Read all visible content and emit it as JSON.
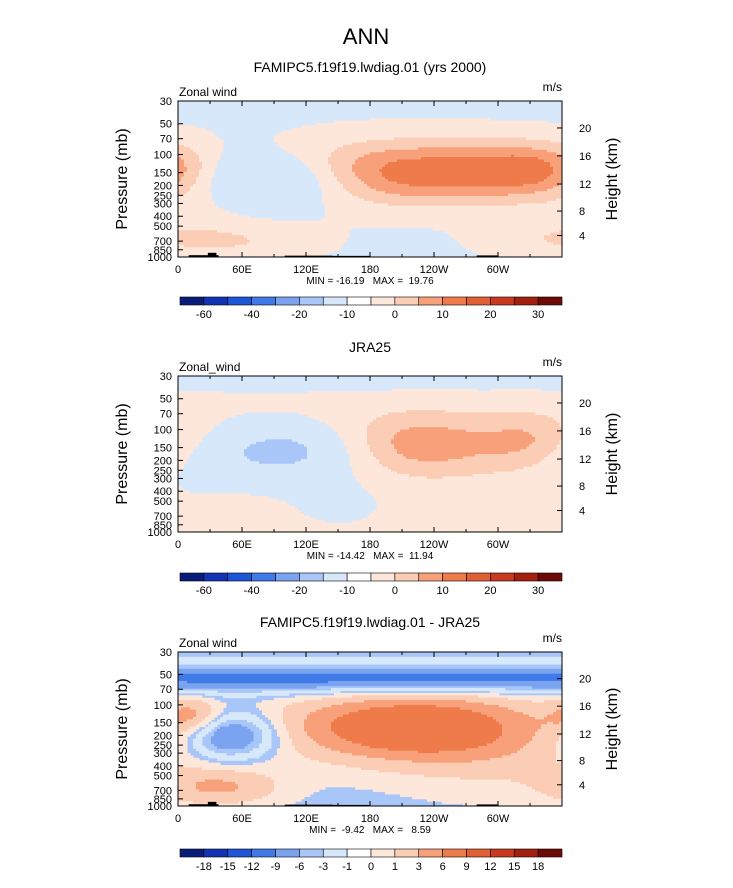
{
  "title": "ANN",
  "colors": {
    "neg4": "#1d56d8",
    "neg3": "#3f7ae8",
    "neg2": "#7aa3f0",
    "neg1": "#a9c6f8",
    "neg0": "#d7e8fb",
    "pos0": "#fde6da",
    "pos1": "#fbcdb4",
    "pos2": "#f7a07a",
    "pos3": "#ef7a4a",
    "pos4": "#e15f35",
    "terrain": "#000000"
  },
  "chart_data": [
    {
      "type": "heatmap",
      "title": "FAMIPC5.f19f19.lwdiag.01 (yrs 2000)",
      "variable": "Zonal wind",
      "units": "m/s",
      "ylabel": "Pressure (mb)",
      "ylabel_right": "Height (km)",
      "x_ticks": [
        "0",
        "60E",
        "120E",
        "180",
        "120W",
        "60W"
      ],
      "x_tick_values": [
        0,
        60,
        120,
        180,
        240,
        300
      ],
      "xlim": [
        0,
        360
      ],
      "y_ticks": [
        "30",
        "50",
        "70",
        "100",
        "150",
        "200",
        "250",
        "300",
        "400",
        "500",
        "700",
        "850",
        "1000"
      ],
      "y_tick_values": [
        30,
        50,
        70,
        100,
        150,
        200,
        250,
        300,
        400,
        500,
        700,
        850,
        1000
      ],
      "y_right_ticks": [
        "20",
        "16",
        "12",
        "8",
        "4"
      ],
      "y_right_tick_pressures": [
        55,
        103,
        194,
        356,
        617
      ],
      "ylim": [
        1000,
        30
      ],
      "background_level": "neg0",
      "features": [
        {
          "lon": 220,
          "p": 150,
          "sx": 95,
          "sy": 0.5,
          "amp": 20
        },
        {
          "lon": 338,
          "p": 140,
          "sx": 40,
          "sy": 0.42,
          "amp": 11
        },
        {
          "lon": 95,
          "p": 170,
          "sx": 55,
          "sy": 0.42,
          "amp": -14
        },
        {
          "lon": 50,
          "p": 700,
          "sx": 55,
          "sy": 0.3,
          "amp": 6
        },
        {
          "lon": 330,
          "p": 650,
          "sx": 40,
          "sy": 0.3,
          "amp": 3
        },
        {
          "lon": 20,
          "p": 350,
          "sx": 30,
          "sy": 0.4,
          "amp": 2
        }
      ],
      "levels": [
        {
          "threshold": -15,
          "color": "neg2"
        },
        {
          "threshold": -8,
          "color": "neg1"
        },
        {
          "threshold": -1.5,
          "color": "neg0"
        },
        {
          "threshold": 1,
          "color": "pos0"
        },
        {
          "threshold": 6,
          "color": "pos1"
        },
        {
          "threshold": 11,
          "color": "pos2"
        },
        {
          "threshold": 16,
          "color": "pos3"
        }
      ],
      "terrain": [
        {
          "lon_start": 10,
          "lon_end": 38,
          "p_top": 960
        },
        {
          "lon_start": 28,
          "lon_end": 36,
          "p_top": 910
        },
        {
          "lon_start": 100,
          "lon_end": 145,
          "p_top": 970
        },
        {
          "lon_start": 145,
          "lon_end": 180,
          "p_top": 975
        },
        {
          "lon_start": 280,
          "lon_end": 300,
          "p_top": 965
        }
      ],
      "stats": "MIN = -16.19   MAX =  19.76",
      "colorbar": {
        "colors": [
          "#0a1c7a",
          "#1233b4",
          "#1d56d8",
          "#3f7ae8",
          "#7aa3f0",
          "#a9c6f8",
          "#d7e8fb",
          "#ffffff",
          "#fde6da",
          "#fbcdb4",
          "#f7a07a",
          "#ef7a4a",
          "#e15f35",
          "#c9391f",
          "#a3200f",
          "#6e0a05"
        ],
        "labels": [
          "-60",
          "-40",
          "-20",
          "-10",
          "0",
          "10",
          "20",
          "30"
        ],
        "label_boundaries": [
          1,
          3,
          5,
          7,
          9,
          11,
          13,
          15
        ]
      }
    },
    {
      "type": "heatmap",
      "title": "JRA25",
      "variable": "Zonal_wind",
      "units": "m/s",
      "ylabel": "Pressure (mb)",
      "ylabel_right": "Height (km)",
      "x_ticks": [
        "0",
        "60E",
        "120E",
        "180",
        "120W",
        "60W"
      ],
      "x_tick_values": [
        0,
        60,
        120,
        180,
        240,
        300
      ],
      "xlim": [
        0,
        360
      ],
      "y_ticks": [
        "30",
        "50",
        "70",
        "100",
        "150",
        "200",
        "250",
        "300",
        "400",
        "500",
        "700",
        "850",
        "1000"
      ],
      "y_tick_values": [
        30,
        50,
        70,
        100,
        150,
        200,
        250,
        300,
        400,
        500,
        700,
        850,
        1000
      ],
      "y_right_ticks": [
        "20",
        "16",
        "12",
        "8",
        "4"
      ],
      "y_right_tick_pressures": [
        55,
        103,
        194,
        356,
        617
      ],
      "ylim": [
        1000,
        30
      ],
      "background_level": "pos0",
      "features": [
        {
          "lon": 225,
          "p": 140,
          "sx": 60,
          "sy": 0.55,
          "amp": 12
        },
        {
          "lon": 335,
          "p": 130,
          "sx": 35,
          "sy": 0.5,
          "amp": 8
        },
        {
          "lon": 105,
          "p": 160,
          "sx": 50,
          "sy": 0.45,
          "amp": -13
        },
        {
          "lon": 20,
          "p": 220,
          "sx": 35,
          "sy": 0.5,
          "amp": -4
        },
        {
          "lon": 150,
          "p": 450,
          "sx": 40,
          "sy": 0.5,
          "amp": -3
        },
        {
          "lon": 180,
          "p": 30,
          "sx": 400,
          "sy": 0.22,
          "amp": -6
        },
        {
          "lon": 50,
          "p": 700,
          "sx": 30,
          "sy": 0.25,
          "amp": 3
        }
      ],
      "levels": [
        {
          "threshold": -10,
          "color": "neg1"
        },
        {
          "threshold": -1.5,
          "color": "neg0"
        },
        {
          "threshold": 1,
          "color": "pos0"
        },
        {
          "threshold": 4.5,
          "color": "pos1"
        },
        {
          "threshold": 9,
          "color": "pos2"
        }
      ],
      "terrain": [],
      "stats": "MIN = -14.42   MAX =  11.94",
      "colorbar": {
        "colors": [
          "#0a1c7a",
          "#1233b4",
          "#1d56d8",
          "#3f7ae8",
          "#7aa3f0",
          "#a9c6f8",
          "#d7e8fb",
          "#ffffff",
          "#fde6da",
          "#fbcdb4",
          "#f7a07a",
          "#ef7a4a",
          "#e15f35",
          "#c9391f",
          "#a3200f",
          "#6e0a05"
        ],
        "labels": [
          "-60",
          "-40",
          "-20",
          "-10",
          "0",
          "10",
          "20",
          "30"
        ],
        "label_boundaries": [
          1,
          3,
          5,
          7,
          9,
          11,
          13,
          15
        ]
      }
    },
    {
      "type": "heatmap",
      "title": "FAMIPC5.f19f19.lwdiag.01 - JRA25",
      "variable": "Zonal wind",
      "units": "m/s",
      "ylabel": "Pressure (mb)",
      "ylabel_right": "Height (km)",
      "x_ticks": [
        "0",
        "60E",
        "120E",
        "180",
        "120W",
        "60W"
      ],
      "x_tick_values": [
        0,
        60,
        120,
        180,
        240,
        300
      ],
      "xlim": [
        0,
        360
      ],
      "y_ticks": [
        "30",
        "50",
        "70",
        "100",
        "150",
        "200",
        "250",
        "300",
        "400",
        "500",
        "700",
        "850",
        "1000"
      ],
      "y_tick_values": [
        30,
        50,
        70,
        100,
        150,
        200,
        250,
        300,
        400,
        500,
        700,
        850,
        1000
      ],
      "y_right_ticks": [
        "20",
        "16",
        "12",
        "8",
        "4"
      ],
      "y_right_tick_pressures": [
        55,
        103,
        194,
        356,
        617
      ],
      "ylim": [
        1000,
        30
      ],
      "background_level": "neg1",
      "features": [
        {
          "lon": 180,
          "p": 55,
          "sx": 400,
          "sy": 0.22,
          "amp": -7
        },
        {
          "lon": 220,
          "p": 165,
          "sx": 85,
          "sy": 0.55,
          "amp": 9
        },
        {
          "lon": 50,
          "p": 200,
          "sx": 30,
          "sy": 0.35,
          "amp": -7
        },
        {
          "lon": 15,
          "p": 130,
          "sx": 20,
          "sy": 0.3,
          "amp": 4
        },
        {
          "lon": 40,
          "p": 650,
          "sx": 40,
          "sy": 0.3,
          "amp": 4
        },
        {
          "lon": 300,
          "p": 400,
          "sx": 70,
          "sy": 0.6,
          "amp": 1.5
        }
      ],
      "levels": [
        {
          "threshold": -5.5,
          "color": "neg3"
        },
        {
          "threshold": -3.5,
          "color": "neg2"
        },
        {
          "threshold": -2,
          "color": "neg1"
        },
        {
          "threshold": -0.5,
          "color": "neg0"
        },
        {
          "threshold": 0.5,
          "color": "pos0"
        },
        {
          "threshold": 2,
          "color": "pos1"
        },
        {
          "threshold": 4,
          "color": "pos2"
        },
        {
          "threshold": 6,
          "color": "pos3"
        }
      ],
      "terrain": [
        {
          "lon_start": 10,
          "lon_end": 38,
          "p_top": 960
        },
        {
          "lon_start": 28,
          "lon_end": 36,
          "p_top": 910
        },
        {
          "lon_start": 100,
          "lon_end": 145,
          "p_top": 970
        },
        {
          "lon_start": 145,
          "lon_end": 180,
          "p_top": 975
        },
        {
          "lon_start": 280,
          "lon_end": 300,
          "p_top": 965
        }
      ],
      "stats": "MIN =  -9.42   MAX =   8.59",
      "colorbar": {
        "colors": [
          "#0a1c7a",
          "#1233b4",
          "#1d56d8",
          "#3f7ae8",
          "#7aa3f0",
          "#a9c6f8",
          "#d7e8fb",
          "#ffffff",
          "#fde6da",
          "#fbcdb4",
          "#f7a07a",
          "#ef7a4a",
          "#e15f35",
          "#c9391f",
          "#a3200f",
          "#6e0a05"
        ],
        "labels": [
          "-18",
          "-15",
          "-12",
          "-9",
          "-6",
          "-3",
          "-1",
          "0",
          "1",
          "3",
          "6",
          "9",
          "12",
          "15",
          "18"
        ],
        "label_boundaries": [
          1,
          2,
          3,
          4,
          5,
          6,
          7,
          8,
          9,
          10,
          11,
          12,
          13,
          14,
          15
        ]
      }
    }
  ]
}
